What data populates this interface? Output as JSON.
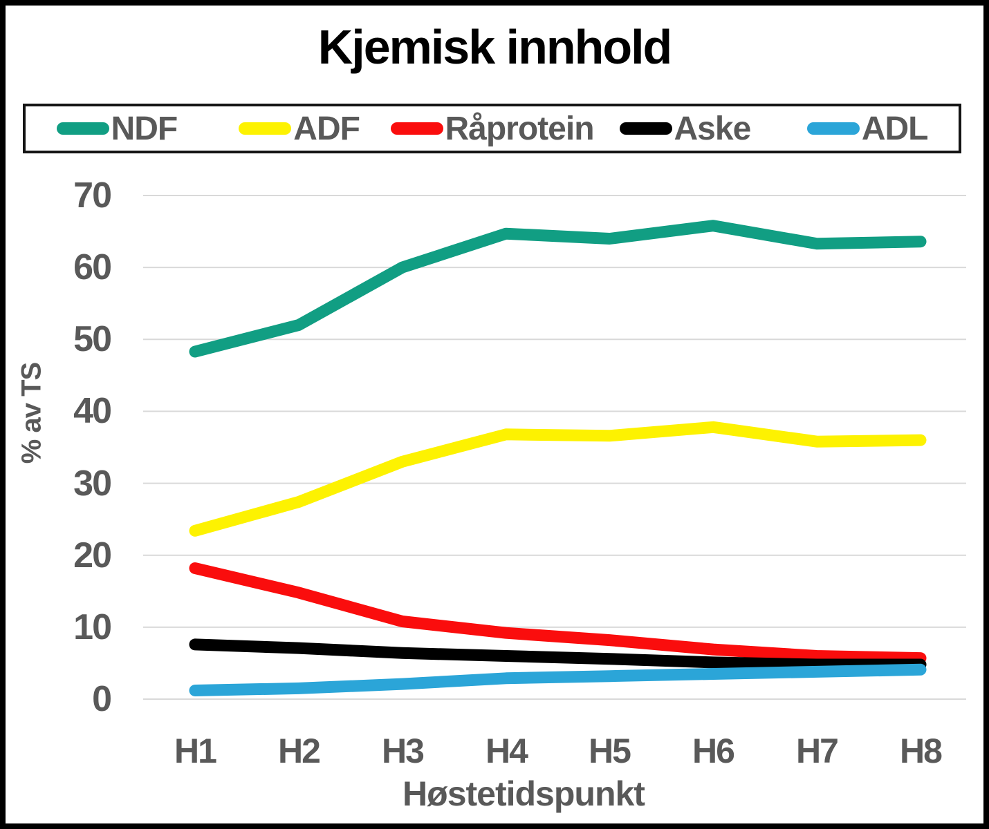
{
  "chart_data": {
    "type": "line",
    "title": "Kjemisk innhold",
    "xlabel": "Høstetidspunkt",
    "ylabel": "% av TS",
    "categories": [
      "H1",
      "H2",
      "H3",
      "H4",
      "H5",
      "H6",
      "H7",
      "H8"
    ],
    "series": [
      {
        "name": "NDF",
        "color": "#119E83",
        "values": [
          48.3,
          52.0,
          60.0,
          64.7,
          64.0,
          65.8,
          63.3,
          63.6
        ]
      },
      {
        "name": "ADF",
        "color": "#FDF201",
        "values": [
          23.4,
          27.4,
          33.0,
          36.8,
          36.6,
          37.8,
          35.8,
          36.0
        ]
      },
      {
        "name": "Råprotein",
        "color": "#FA0D0D",
        "values": [
          18.2,
          14.8,
          10.8,
          9.2,
          8.2,
          6.9,
          6.0,
          5.7
        ]
      },
      {
        "name": "Aske",
        "color": "#000000",
        "values": [
          7.6,
          7.1,
          6.4,
          6.0,
          5.6,
          5.1,
          4.8,
          4.8
        ]
      },
      {
        "name": "ADL",
        "color": "#2BA5D8",
        "values": [
          1.2,
          1.5,
          2.1,
          2.9,
          3.2,
          3.5,
          3.8,
          4.1
        ]
      }
    ],
    "ylim": [
      0,
      70
    ],
    "yticks": [
      70,
      60,
      50,
      40,
      30,
      20,
      10,
      0
    ],
    "grid": "horizontal",
    "legend_position": "top-box"
  },
  "colors": {
    "background": "#FFFFFF",
    "frame": "#000000",
    "title_text": "#000000",
    "axis_text": "#595959",
    "gridline": "#D9D9D9",
    "legend_border": "#141414"
  }
}
